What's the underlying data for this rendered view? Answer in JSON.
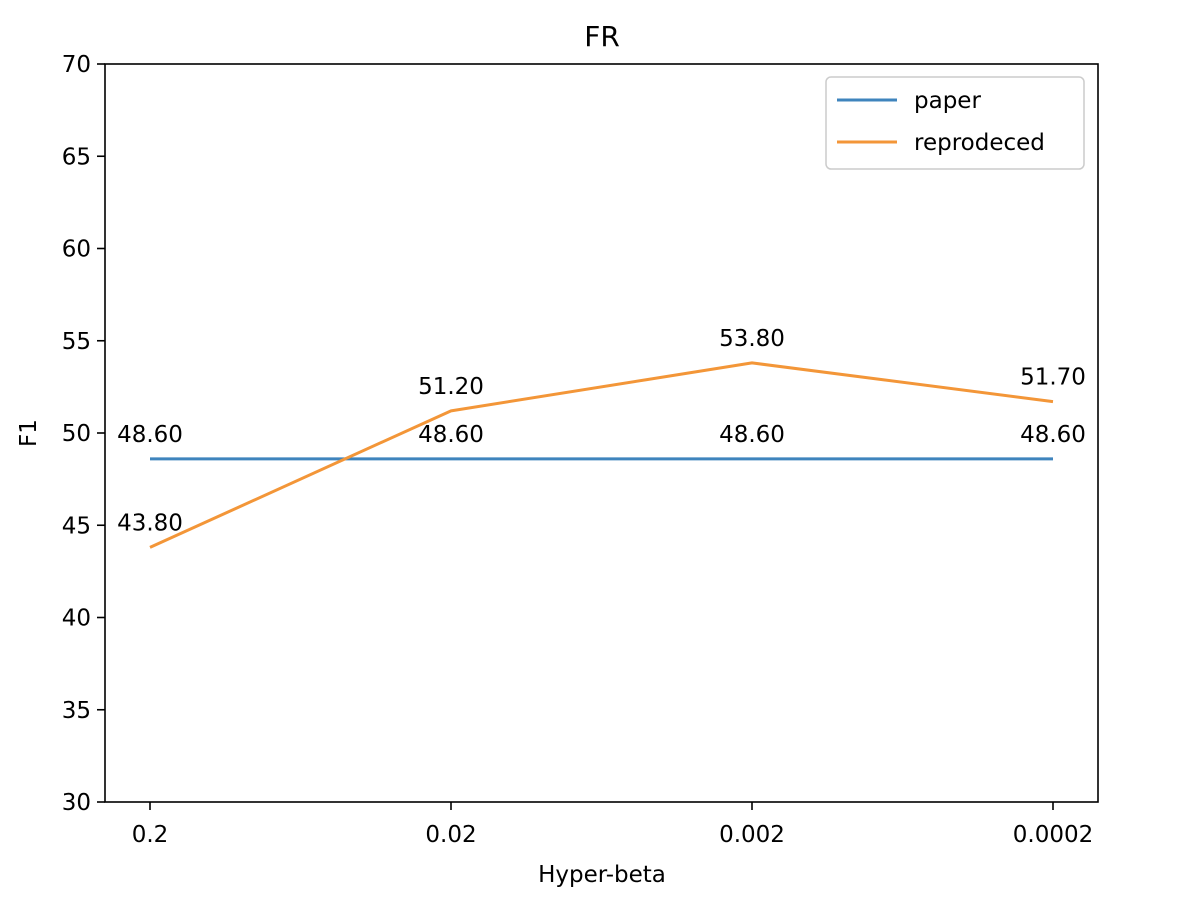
{
  "chart_data": {
    "type": "line",
    "title": "FR",
    "xlabel": "Hyper-beta",
    "ylabel": "F1",
    "categories": [
      "0.2",
      "0.02",
      "0.002",
      "0.0002"
    ],
    "ylim": [
      30,
      70
    ],
    "yticks": [
      30,
      35,
      40,
      45,
      50,
      55,
      60,
      65,
      70
    ],
    "grid": false,
    "legend_position": "top-right",
    "series": [
      {
        "name": "paper",
        "color": "#3f84bd",
        "values": [
          48.6,
          48.6,
          48.6,
          48.6
        ],
        "labels": [
          "48.60",
          "48.60",
          "48.60",
          "48.60"
        ]
      },
      {
        "name": "reprodeced",
        "color": "#f39638",
        "values": [
          43.8,
          51.2,
          53.8,
          51.7
        ],
        "labels": [
          "43.80",
          "51.20",
          "53.80",
          "51.70"
        ]
      }
    ]
  }
}
